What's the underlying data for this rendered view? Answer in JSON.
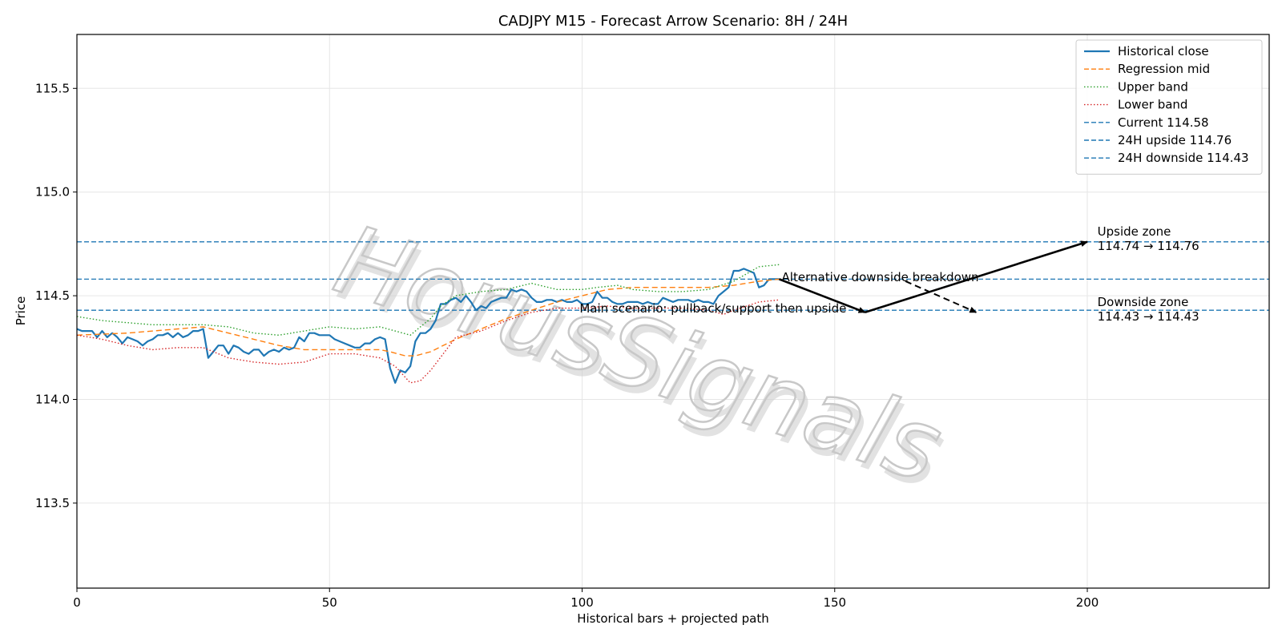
{
  "chart_data": {
    "type": "line",
    "title": "CADJPY M15 - Forecast Arrow Scenario: 8H / 24H",
    "xlabel": "Historical bars + projected path",
    "ylabel": "Price",
    "xlim": [
      0,
      236
    ],
    "ylim": [
      113.09,
      115.76
    ],
    "xticks": [
      0,
      50,
      100,
      150,
      200
    ],
    "yticks": [
      113.5,
      114.0,
      114.5,
      115.0,
      115.5
    ],
    "xtick_labels": [
      "0",
      "50",
      "100",
      "150",
      "200"
    ],
    "ytick_labels": [
      "113.5",
      "114.0",
      "114.5",
      "115.0",
      "115.5"
    ],
    "grid": true,
    "legend_position": "top-right",
    "watermark": "HorusSignals",
    "series": [
      {
        "name": "Historical close",
        "style": "solid",
        "color": "#1f77b4",
        "x": [
          0,
          1,
          2,
          3,
          4,
          5,
          6,
          7,
          8,
          9,
          10,
          11,
          12,
          13,
          14,
          15,
          16,
          17,
          18,
          19,
          20,
          21,
          22,
          23,
          24,
          25,
          26,
          27,
          28,
          29,
          30,
          31,
          32,
          33,
          34,
          35,
          36,
          37,
          38,
          39,
          40,
          41,
          42,
          43,
          44,
          45,
          46,
          47,
          48,
          49,
          50,
          51,
          52,
          53,
          54,
          55,
          56,
          57,
          58,
          59,
          60,
          61,
          62,
          63,
          64,
          65,
          66,
          67,
          68,
          69,
          70,
          71,
          72,
          73,
          74,
          75,
          76,
          77,
          78,
          79,
          80,
          81,
          82,
          83,
          84,
          85,
          86,
          87,
          88,
          89,
          90,
          91,
          92,
          93,
          94,
          95,
          96,
          97,
          98,
          99,
          100,
          101,
          102,
          103,
          104,
          105,
          106,
          107,
          108,
          109,
          110,
          111,
          112,
          113,
          114,
          115,
          116,
          117,
          118,
          119,
          120,
          121,
          122,
          123,
          124,
          125,
          126,
          127,
          128,
          129,
          130,
          131,
          132,
          133,
          134,
          135,
          136,
          137,
          138,
          139
        ],
        "values": [
          114.34,
          114.33,
          114.33,
          114.33,
          114.3,
          114.33,
          114.3,
          114.32,
          114.3,
          114.27,
          114.3,
          114.29,
          114.28,
          114.26,
          114.28,
          114.29,
          114.31,
          114.31,
          114.32,
          114.3,
          114.32,
          114.3,
          114.31,
          114.33,
          114.33,
          114.34,
          114.2,
          114.23,
          114.26,
          114.26,
          114.22,
          114.26,
          114.25,
          114.23,
          114.22,
          114.24,
          114.24,
          114.21,
          114.23,
          114.24,
          114.23,
          114.25,
          114.24,
          114.25,
          114.3,
          114.28,
          114.32,
          114.32,
          114.31,
          114.31,
          114.31,
          114.29,
          114.28,
          114.27,
          114.26,
          114.25,
          114.25,
          114.27,
          114.27,
          114.29,
          114.3,
          114.29,
          114.15,
          114.08,
          114.14,
          114.13,
          114.16,
          114.28,
          114.32,
          114.32,
          114.34,
          114.38,
          114.46,
          114.46,
          114.48,
          114.49,
          114.47,
          114.5,
          114.47,
          114.43,
          114.45,
          114.44,
          114.47,
          114.48,
          114.49,
          114.49,
          114.53,
          114.52,
          114.53,
          114.52,
          114.49,
          114.47,
          114.47,
          114.48,
          114.48,
          114.47,
          114.48,
          114.47,
          114.47,
          114.48,
          114.46,
          114.46,
          114.47,
          114.52,
          114.49,
          114.49,
          114.47,
          114.46,
          114.46,
          114.47,
          114.47,
          114.47,
          114.46,
          114.47,
          114.46,
          114.46,
          114.49,
          114.48,
          114.47,
          114.48,
          114.48,
          114.48,
          114.47,
          114.48,
          114.47,
          114.47,
          114.46,
          114.5,
          114.52,
          114.54,
          114.62,
          114.62,
          114.63,
          114.62,
          114.61,
          114.54,
          114.55,
          114.58,
          114.58,
          114.58
        ]
      },
      {
        "name": "Regression mid",
        "style": "dashed",
        "color": "#ff7f0e",
        "x": [
          0,
          10,
          20,
          25,
          30,
          35,
          40,
          45,
          50,
          55,
          60,
          62,
          65,
          67,
          70,
          75,
          80,
          85,
          90,
          95,
          100,
          105,
          110,
          115,
          120,
          125,
          130,
          135,
          139
        ],
        "values": [
          114.31,
          114.32,
          114.34,
          114.35,
          114.32,
          114.29,
          114.26,
          114.24,
          114.24,
          114.24,
          114.24,
          114.23,
          114.21,
          114.21,
          114.23,
          114.29,
          114.34,
          114.39,
          114.43,
          114.47,
          114.5,
          114.53,
          114.54,
          114.54,
          114.54,
          114.54,
          114.55,
          114.57,
          114.58
        ]
      },
      {
        "name": "Upper band",
        "style": "dotted",
        "color": "#2ca02c",
        "x": [
          0,
          5,
          10,
          15,
          20,
          25,
          30,
          35,
          40,
          45,
          50,
          55,
          60,
          63,
          66,
          68,
          70,
          72,
          75,
          80,
          85,
          90,
          95,
          100,
          103,
          107,
          110,
          115,
          120,
          125,
          130,
          135,
          139
        ],
        "values": [
          114.4,
          114.38,
          114.37,
          114.36,
          114.36,
          114.36,
          114.35,
          114.32,
          114.31,
          114.33,
          114.35,
          114.34,
          114.35,
          114.33,
          114.31,
          114.35,
          114.39,
          114.45,
          114.5,
          114.52,
          114.53,
          114.56,
          114.53,
          114.53,
          114.54,
          114.55,
          114.53,
          114.52,
          114.52,
          114.53,
          114.57,
          114.64,
          114.65
        ]
      },
      {
        "name": "Lower band",
        "style": "dotted",
        "color": "#d62728",
        "x": [
          0,
          5,
          10,
          15,
          20,
          25,
          30,
          35,
          40,
          45,
          50,
          55,
          60,
          63,
          66,
          68,
          70,
          75,
          80,
          85,
          90,
          95,
          100,
          105,
          110,
          115,
          120,
          125,
          128,
          130,
          135,
          139
        ],
        "values": [
          114.31,
          114.29,
          114.26,
          114.24,
          114.25,
          114.25,
          114.2,
          114.18,
          114.17,
          114.18,
          114.22,
          114.22,
          114.2,
          114.16,
          114.08,
          114.09,
          114.14,
          114.3,
          114.33,
          114.38,
          114.42,
          114.44,
          114.44,
          114.45,
          114.44,
          114.44,
          114.44,
          114.43,
          114.41,
          114.43,
          114.47,
          114.48
        ]
      }
    ],
    "hlines": [
      {
        "name": "Current 114.58",
        "y": 114.58,
        "color": "#1f77b4",
        "style": "dashed"
      },
      {
        "name": "24H upside 114.76",
        "y": 114.76,
        "color": "#1f77b4",
        "style": "dashed"
      },
      {
        "name": "24H downside 114.43",
        "y": 114.43,
        "color": "#1f77b4",
        "style": "dashed"
      }
    ],
    "arrows": [
      {
        "id": "main-leg1",
        "from": [
          139,
          114.58
        ],
        "to": [
          156,
          114.42
        ],
        "style": "solid"
      },
      {
        "id": "main-leg2",
        "from": [
          156,
          114.42
        ],
        "to": [
          200,
          114.76
        ],
        "style": "solid"
      },
      {
        "id": "alt",
        "from": [
          164,
          114.57
        ],
        "to": [
          178,
          114.42
        ],
        "style": "dashed"
      }
    ],
    "annotations": [
      {
        "id": "main",
        "text": "Main scenario: pullback/support then upside",
        "x": 99.5,
        "y": 114.42
      },
      {
        "id": "alt",
        "text": "Alternative downside breakdown",
        "x": 139.5,
        "y": 114.57
      },
      {
        "id": "upside-title",
        "text": "Upside zone",
        "x": 202,
        "y": 114.79
      },
      {
        "id": "upside-range",
        "text": "114.74 → 114.76",
        "x": 202,
        "y": 114.72
      },
      {
        "id": "downside-title",
        "text": "Downside zone",
        "x": 202,
        "y": 114.45
      },
      {
        "id": "downside-range",
        "text": "114.43 → 114.43",
        "x": 202,
        "y": 114.38
      }
    ]
  }
}
